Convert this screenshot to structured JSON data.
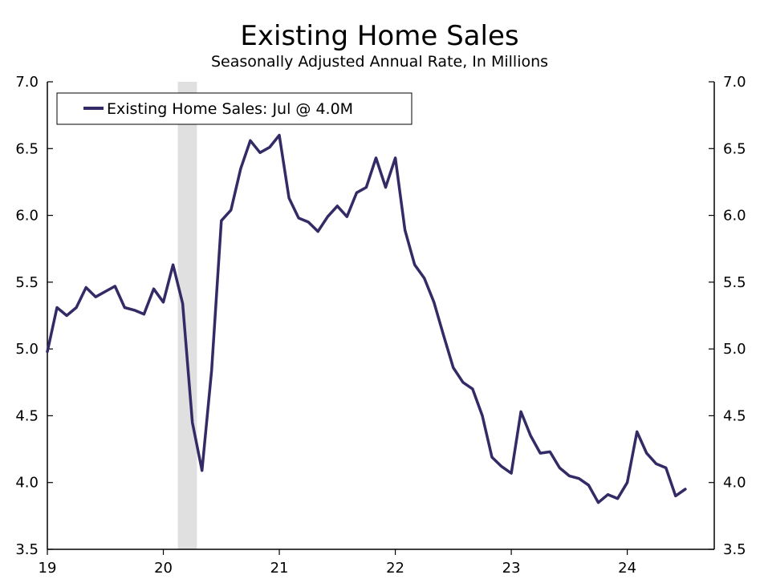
{
  "chart_data": {
    "type": "line",
    "title": "Existing Home Sales",
    "subtitle": "Seasonally Adjusted Annual Rate, In Millions",
    "ylim": [
      3.5,
      7.0
    ],
    "yticks": [
      "3.5",
      "4.0",
      "4.5",
      "5.0",
      "5.5",
      "6.0",
      "6.5",
      "7.0"
    ],
    "xlim": [
      2019.0,
      2024.75
    ],
    "xticks": [
      {
        "value": 2019,
        "label": "19"
      },
      {
        "value": 2020,
        "label": "20"
      },
      {
        "value": 2021,
        "label": "21"
      },
      {
        "value": 2022,
        "label": "22"
      },
      {
        "value": 2023,
        "label": "23"
      },
      {
        "value": 2024,
        "label": "24"
      }
    ],
    "recession": [
      2020.125,
      2020.29
    ],
    "legend": {
      "position": "top-left",
      "label": "Existing Home Sales: Jul @ 4.0M"
    },
    "colors": {
      "line": "#332b66",
      "recession": "#e0e0e0"
    },
    "series": [
      {
        "name": "Existing Home Sales: Jul @ 4.0M",
        "x": [
          "2019-01",
          "2019-02",
          "2019-03",
          "2019-04",
          "2019-05",
          "2019-06",
          "2019-07",
          "2019-08",
          "2019-09",
          "2019-10",
          "2019-11",
          "2019-12",
          "2020-01",
          "2020-02",
          "2020-03",
          "2020-04",
          "2020-05",
          "2020-06",
          "2020-07",
          "2020-08",
          "2020-09",
          "2020-10",
          "2020-11",
          "2020-12",
          "2021-01",
          "2021-02",
          "2021-03",
          "2021-04",
          "2021-05",
          "2021-06",
          "2021-07",
          "2021-08",
          "2021-09",
          "2021-10",
          "2021-11",
          "2021-12",
          "2022-01",
          "2022-02",
          "2022-03",
          "2022-04",
          "2022-05",
          "2022-06",
          "2022-07",
          "2022-08",
          "2022-09",
          "2022-10",
          "2022-11",
          "2022-12",
          "2023-01",
          "2023-02",
          "2023-03",
          "2023-04",
          "2023-05",
          "2023-06",
          "2023-07",
          "2023-08",
          "2023-09",
          "2023-10",
          "2023-11",
          "2023-12",
          "2024-01",
          "2024-02",
          "2024-03",
          "2024-04",
          "2024-05",
          "2024-06",
          "2024-07"
        ],
        "values": [
          4.98,
          5.31,
          5.25,
          5.31,
          5.46,
          5.39,
          5.43,
          5.47,
          5.31,
          5.29,
          5.26,
          5.45,
          5.35,
          5.63,
          5.34,
          4.45,
          4.09,
          4.84,
          5.96,
          6.04,
          6.35,
          6.56,
          6.47,
          6.51,
          6.6,
          6.13,
          5.98,
          5.95,
          5.88,
          5.99,
          6.07,
          5.99,
          6.17,
          6.21,
          6.43,
          6.21,
          6.43,
          5.89,
          5.63,
          5.53,
          5.35,
          5.1,
          4.86,
          4.75,
          4.7,
          4.5,
          4.19,
          4.12,
          4.07,
          4.53,
          4.35,
          4.22,
          4.23,
          4.11,
          4.05,
          4.03,
          3.98,
          3.85,
          3.91,
          3.88,
          4.0,
          4.38,
          4.22,
          4.14,
          4.11,
          3.9,
          3.95
        ]
      }
    ]
  }
}
